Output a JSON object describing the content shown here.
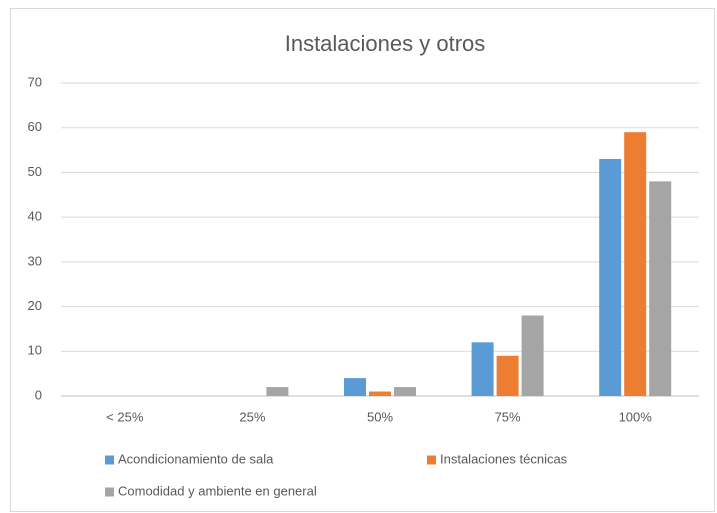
{
  "chart_data": {
    "type": "bar",
    "title": "Instalaciones y otros",
    "categories": [
      "< 25%",
      "25%",
      "50%",
      "75%",
      "100%"
    ],
    "series": [
      {
        "name": "Acondicionamiento de sala",
        "color": "#5b9bd5",
        "values": [
          0,
          0,
          4,
          12,
          53
        ]
      },
      {
        "name": "Instalaciones técnicas",
        "color": "#ed7d31",
        "values": [
          0,
          0,
          1,
          9,
          59
        ]
      },
      {
        "name": "Comodidad y ambiente en general",
        "color": "#a5a5a5",
        "values": [
          0,
          2,
          2,
          18,
          48
        ]
      }
    ],
    "ylim": [
      0,
      70
    ],
    "yticks": [
      0,
      10,
      20,
      30,
      40,
      50,
      60,
      70
    ],
    "grid": true,
    "legend": "bottom"
  }
}
